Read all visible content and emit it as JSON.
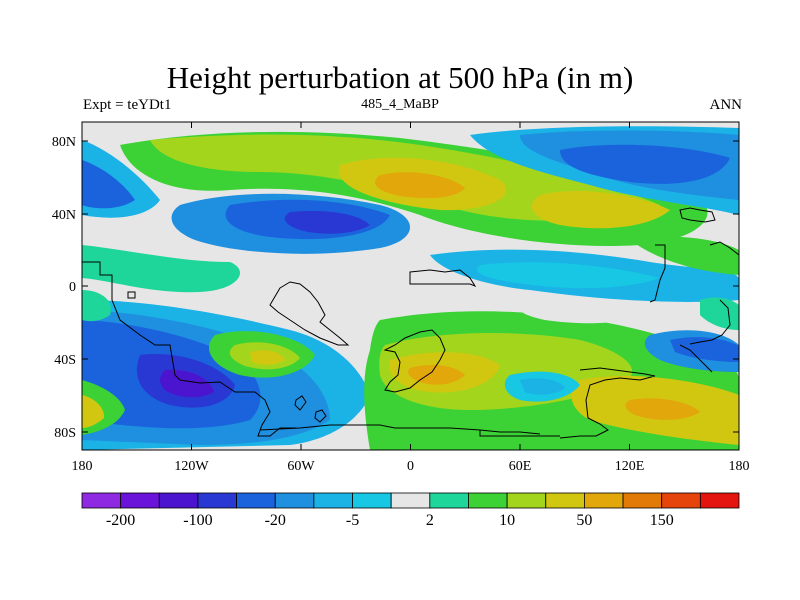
{
  "title": "Height perturbation at 500 hPa (in m)",
  "subtitle_left": "Expt = teYDt1",
  "subtitle_center": "485_4_MaBP",
  "subtitle_right": "ANN",
  "lat_labels": [
    "80N",
    "40N",
    "0",
    "40S",
    "80S"
  ],
  "lon_labels": [
    "180",
    "120W",
    "60W",
    "0",
    "60E",
    "120E",
    "180"
  ],
  "colorbar": {
    "colors": [
      "#8f2ae3",
      "#6a13d9",
      "#4b15cf",
      "#2a38d3",
      "#1a63dd",
      "#1f8fe0",
      "#1bb2e6",
      "#17c7e3",
      "#e6e6e6",
      "#1ed699",
      "#3cd236",
      "#a2d51c",
      "#d2c710",
      "#e1a70b",
      "#e27a08",
      "#e5440a",
      "#e4150e"
    ],
    "labels": [
      "-200",
      "-100",
      "-20",
      "-5",
      "2",
      "10",
      "50",
      "150"
    ]
  }
}
